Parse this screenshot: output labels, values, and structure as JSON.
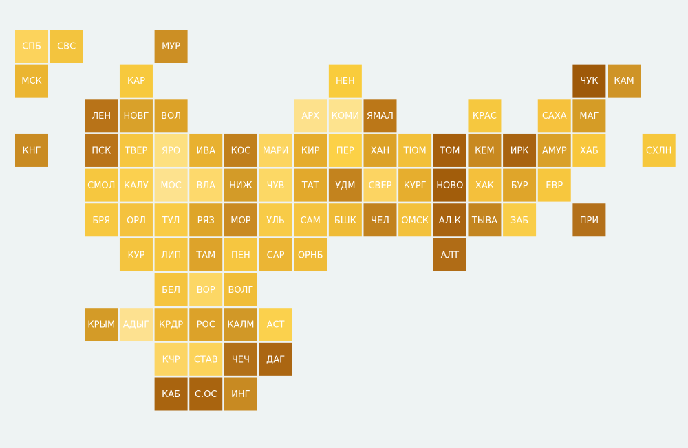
{
  "rows": [
    [
      {
        "label": "СПБ",
        "color": "#fcd35c"
      },
      {
        "label": "СВС",
        "color": "#f3c43e"
      },
      null,
      null,
      {
        "label": "МУР",
        "color": "#cc8f24"
      }
    ],
    [
      {
        "label": "МСК",
        "color": "#ebb531"
      },
      null,
      null,
      {
        "label": "КАР",
        "color": "#f7c93d"
      },
      null,
      null,
      null,
      null,
      null,
      {
        "label": "НЕН",
        "color": "#f9cc3c"
      },
      null,
      null,
      null,
      null,
      null,
      null,
      {
        "label": "ЧУК",
        "color": "#9e5909"
      },
      {
        "label": "КАМ",
        "color": "#cf9427"
      }
    ],
    [
      null,
      null,
      {
        "label": "ЛЕН",
        "color": "#b87318"
      },
      {
        "label": "НОВГ",
        "color": "#d9a12a"
      },
      {
        "label": "ВОЛ",
        "color": "#dca228"
      },
      null,
      null,
      null,
      {
        "label": "АРХ",
        "color": "#fde18c"
      },
      {
        "label": "КОМИ",
        "color": "#fde38e"
      },
      {
        "label": "ЯМАЛ",
        "color": "#bb7718"
      },
      null,
      null,
      {
        "label": "КРАС",
        "color": "#f6c83f"
      },
      null,
      {
        "label": "САХА",
        "color": "#f6c23d"
      },
      {
        "label": "МАГ",
        "color": "#d59c26"
      }
    ],
    [
      {
        "label": "КНГ",
        "color": "#c98b22"
      },
      null,
      {
        "label": "ПСК",
        "color": "#b97419"
      },
      {
        "label": "ТВЕР",
        "color": "#f6c640"
      },
      {
        "label": "ЯРО",
        "color": "#fde080"
      },
      {
        "label": "ИВА",
        "color": "#e8b130"
      },
      {
        "label": "КОС",
        "color": "#c07f1c"
      },
      {
        "label": "МАРИ",
        "color": "#fcd560"
      },
      {
        "label": "КИР",
        "color": "#e5ac2c"
      },
      {
        "label": "ПЕР",
        "color": "#fcd147"
      },
      {
        "label": "ХАН",
        "color": "#dca227"
      },
      {
        "label": "ТЮМ",
        "color": "#f2c039"
      },
      {
        "label": "ТОМ",
        "color": "#a55e0c"
      },
      {
        "label": "КЕМ",
        "color": "#c88920"
      },
      {
        "label": "ИРК",
        "color": "#a86310"
      },
      {
        "label": "АМУР",
        "color": "#d9a029"
      },
      {
        "label": "ХАБ",
        "color": "#f8c73c"
      },
      null,
      {
        "label": "СХЛН",
        "color": "#f6c73c"
      }
    ],
    [
      null,
      null,
      {
        "label": "СМОЛ",
        "color": "#f6c73f"
      },
      {
        "label": "КАЛУ",
        "color": "#fbd04f"
      },
      {
        "label": "МОС",
        "color": "#fde28e"
      },
      {
        "label": "ВЛА",
        "color": "#fdd96c"
      },
      {
        "label": "НИЖ",
        "color": "#d39b28"
      },
      {
        "label": "ЧУВ",
        "color": "#fcd865"
      },
      {
        "label": "ТАТ",
        "color": "#e2a92c"
      },
      {
        "label": "УДМ",
        "color": "#c3831e"
      },
      {
        "label": "СВЕР",
        "color": "#fcd462"
      },
      {
        "label": "КУРГ",
        "color": "#e6ae2e"
      },
      {
        "label": "НОВО",
        "color": "#a25d0b"
      },
      {
        "label": "ХАК",
        "color": "#f4c03c"
      },
      {
        "label": "БУР",
        "color": "#dfa52a"
      },
      {
        "label": "ЕВР",
        "color": "#f7c73e"
      }
    ],
    [
      null,
      null,
      {
        "label": "БРЯ",
        "color": "#f7c840"
      },
      {
        "label": "ОРЛ",
        "color": "#f4c23e"
      },
      {
        "label": "ТУЛ",
        "color": "#f9cb45"
      },
      {
        "label": "РЯЗ",
        "color": "#dea529"
      },
      {
        "label": "МОР",
        "color": "#c98a22"
      },
      {
        "label": "УЛЬ",
        "color": "#f8cb47"
      },
      {
        "label": "САМ",
        "color": "#f5c440"
      },
      {
        "label": "БШК",
        "color": "#efbb36"
      },
      {
        "label": "ЧЕЛ",
        "color": "#c2821e"
      },
      {
        "label": "ОМСК",
        "color": "#f3c13c"
      },
      {
        "label": "АЛ.К",
        "color": "#a86310"
      },
      {
        "label": "ТЫВА",
        "color": "#c38520"
      },
      {
        "label": "ЗАБ",
        "color": "#f9cd48"
      },
      null,
      {
        "label": "ПРИ",
        "color": "#b3701a"
      }
    ],
    [
      null,
      null,
      null,
      {
        "label": "КУР",
        "color": "#f4c43e"
      },
      {
        "label": "ЛИП",
        "color": "#f6c640"
      },
      {
        "label": "ТАМ",
        "color": "#dda32a"
      },
      {
        "label": "ПЕН",
        "color": "#f6c640"
      },
      {
        "label": "САР",
        "color": "#ebb534"
      },
      {
        "label": "ОРНБ",
        "color": "#efbb38"
      },
      null,
      null,
      null,
      {
        "label": "АЛТ",
        "color": "#b06c16"
      }
    ],
    [
      null,
      null,
      null,
      null,
      {
        "label": "БЕЛ",
        "color": "#f5c43e"
      },
      {
        "label": "ВОР",
        "color": "#fcd765"
      },
      {
        "label": "ВОЛГ",
        "color": "#f0bd38"
      }
    ],
    [
      null,
      null,
      {
        "label": "КРЫМ",
        "color": "#d49b27"
      },
      {
        "label": "АДЫГ",
        "color": "#fde190"
      },
      {
        "label": "КРДР",
        "color": "#ecb634"
      },
      {
        "label": "РОС",
        "color": "#dca229"
      },
      {
        "label": "КАЛМ",
        "color": "#d19827"
      },
      {
        "label": "АСТ",
        "color": "#fbd14d"
      }
    ],
    [
      null,
      null,
      null,
      null,
      {
        "label": "КЧР",
        "color": "#fcd564"
      },
      {
        "label": "СТАВ",
        "color": "#fcd35a"
      },
      {
        "label": "ЧЕЧ",
        "color": "#b27018"
      },
      {
        "label": "ДАГ",
        "color": "#ab6612"
      }
    ],
    [
      null,
      null,
      null,
      null,
      {
        "label": "КАБ",
        "color": "#a9640f"
      },
      {
        "label": "С.ОС",
        "color": "#a9640f"
      },
      {
        "label": "ИНГ",
        "color": "#c88a22"
      }
    ]
  ]
}
